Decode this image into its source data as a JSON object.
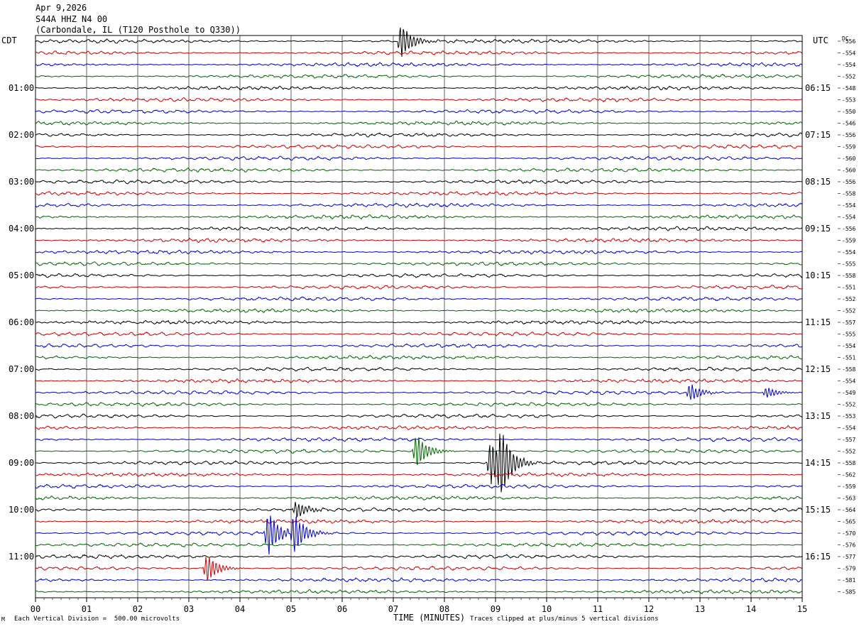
{
  "header": {
    "date": "Apr 9,2026",
    "station": "S44A HHZ N4 00",
    "location": "(Carbondale, IL (T120 Posthole to Q330))"
  },
  "footer": {
    "scale_note": "Each Vertical Division =  500.00 microvolts",
    "clip_note": "Traces clipped at plus/minus 5 vertical divisions",
    "corner_mark": "M"
  },
  "chart_data": {
    "type": "line",
    "title": "",
    "xlabel": "TIME (MINUTES)",
    "x_ticks": [
      "00",
      "01",
      "02",
      "03",
      "04",
      "05",
      "06",
      "07",
      "08",
      "09",
      "10",
      "11",
      "12",
      "13",
      "14",
      "15"
    ],
    "xlim": [
      0,
      15
    ],
    "left_axis_label": "CDT",
    "right_axis_label": "UTC",
    "dc_label": "DC",
    "cdt_labels": [
      "",
      "",
      "",
      "",
      "01:00",
      "",
      "",
      "",
      "02:00",
      "",
      "",
      "",
      "03:00",
      "",
      "",
      "",
      "04:00",
      "",
      "",
      "",
      "05:00",
      "",
      "",
      "",
      "06:00",
      "",
      "",
      "",
      "07:00",
      "",
      "",
      "",
      "08:00",
      "",
      "",
      "",
      "09:00",
      "",
      "",
      "",
      "10:00",
      "",
      "",
      "",
      "11:00",
      "",
      "",
      ""
    ],
    "utc_labels": [
      "",
      "",
      "",
      "",
      "06:15",
      "",
      "",
      "",
      "07:15",
      "",
      "",
      "",
      "08:15",
      "",
      "",
      "",
      "09:15",
      "",
      "",
      "",
      "10:15",
      "",
      "",
      "",
      "11:15",
      "",
      "",
      "",
      "12:15",
      "",
      "",
      "",
      "13:15",
      "",
      "",
      "",
      "14:15",
      "",
      "",
      "",
      "15:15",
      "",
      "",
      "",
      "16:15",
      "",
      "",
      ""
    ],
    "dc_offsets": [
      "-556",
      "-554",
      "-554",
      "-552",
      "-548",
      "-553",
      "-550",
      "-546",
      "-556",
      "-559",
      "-560",
      "-560",
      "-556",
      "-558",
      "-554",
      "-554",
      "-556",
      "-559",
      "-554",
      "-555",
      "-558",
      "-551",
      "-552",
      "-552",
      "-557",
      "-555",
      "-554",
      "-551",
      "-558",
      "-554",
      "-549",
      "-552",
      "-553",
      "-554",
      "-557",
      "-552",
      "-558",
      "-562",
      "-559",
      "-563",
      "-564",
      "-565",
      "-570",
      "-576",
      "-577",
      "-579",
      "-581",
      "-585"
    ],
    "trace_colors": [
      "#000000",
      "#cc0000",
      "#0000cc",
      "#006600"
    ],
    "trace_count": 48,
    "grid": "vertical lines at every minute",
    "events": [
      {
        "trace": 0,
        "minute": 7.15,
        "amplitude": 3
      },
      {
        "trace": 30,
        "minute": 12.8,
        "amplitude": 1.6
      },
      {
        "trace": 30,
        "minute": 14.3,
        "amplitude": 1.0
      },
      {
        "trace": 35,
        "minute": 7.45,
        "amplitude": 3
      },
      {
        "trace": 36,
        "minute": 8.9,
        "amplitude": 4
      },
      {
        "trace": 36,
        "minute": 9.1,
        "amplitude": 5
      },
      {
        "trace": 40,
        "minute": 5.1,
        "amplitude": 1.5
      },
      {
        "trace": 42,
        "minute": 4.55,
        "amplitude": 4
      },
      {
        "trace": 42,
        "minute": 5.05,
        "amplitude": 4
      },
      {
        "trace": 45,
        "minute": 3.35,
        "amplitude": 2.5
      }
    ]
  }
}
